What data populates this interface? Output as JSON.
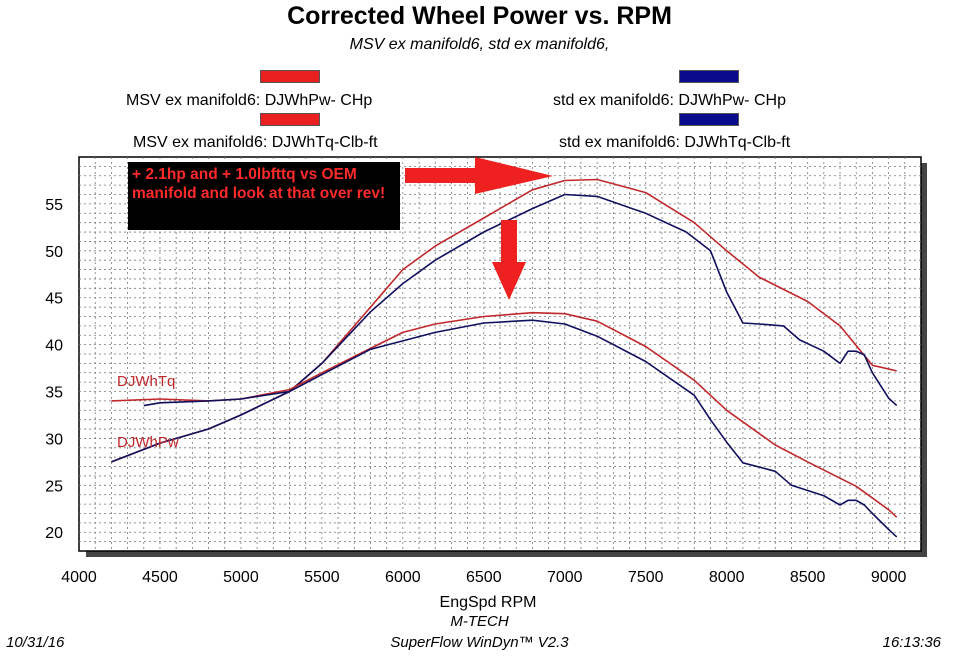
{
  "chart_data": {
    "type": "line",
    "title": "Corrected Wheel Power vs. RPM",
    "subtitle": "MSV ex manifold6, std ex manifold6,",
    "xlabel": "EngSpd  RPM",
    "ylabel": "",
    "xlim": [
      4000,
      9200
    ],
    "ylim": [
      18,
      60
    ],
    "xticks": [
      4000,
      4500,
      5000,
      5500,
      6000,
      6500,
      7000,
      7500,
      8000,
      8500,
      9000
    ],
    "yticks": [
      20,
      25,
      30,
      35,
      40,
      45,
      50,
      55
    ],
    "grid": true,
    "legend": {
      "placement": "top",
      "entries": [
        {
          "label": "MSV ex manifold6: DJWhPw- CHp",
          "color": "#e82020"
        },
        {
          "label": "std ex manifold6: DJWhPw- CHp",
          "color": "#0a0a8c"
        },
        {
          "label": "MSV ex manifold6: DJWhTq-Clb-ft",
          "color": "#e82020"
        },
        {
          "label": "std ex manifold6: DJWhTq-Clb-ft",
          "color": "#0a0a8c"
        }
      ]
    },
    "series_labels": {
      "torque": "DJWhTq",
      "power": "DJWhPw"
    },
    "series": [
      {
        "name": "MSV ex manifold6: DJWhPw- CHp",
        "color": "#c0282c",
        "x": [
          4200,
          4500,
          4800,
          5000,
          5300,
          5500,
          5800,
          6000,
          6200,
          6500,
          6800,
          7000,
          7200,
          7500,
          7800,
          8000,
          8200,
          8500,
          8700,
          8900,
          9050
        ],
        "y": [
          27.5,
          29.5,
          31,
          32.5,
          35,
          38,
          44,
          48,
          50.5,
          53.5,
          56.5,
          57.5,
          57.6,
          56.2,
          53,
          50,
          47.2,
          44.6,
          42,
          37.8,
          37.2
        ]
      },
      {
        "name": "std ex manifold6: DJWhPw- CHp",
        "color": "#10105e",
        "x": [
          4200,
          4500,
          4800,
          5000,
          5300,
          5500,
          5800,
          6000,
          6200,
          6500,
          6800,
          7000,
          7200,
          7500,
          7750,
          7900,
          8000,
          8100,
          8200,
          8350,
          8450,
          8600,
          8700,
          8750,
          8800,
          8850,
          8900,
          9000,
          9050
        ],
        "y": [
          27.5,
          29.5,
          31,
          32.5,
          35,
          38,
          43.5,
          46.5,
          49,
          52,
          54.5,
          56,
          55.8,
          54,
          52,
          50,
          45.6,
          42.3,
          42.2,
          42,
          40.5,
          39.3,
          38,
          39.3,
          39.3,
          38.9,
          37,
          34.3,
          33.5
        ]
      },
      {
        "name": "MSV ex manifold6: DJWhTq-Clb-ft",
        "color": "#c0282c",
        "x": [
          4200,
          4500,
          4800,
          5000,
          5300,
          5500,
          5800,
          6000,
          6200,
          6500,
          6800,
          7000,
          7200,
          7500,
          7800,
          8000,
          8300,
          8500,
          8800,
          9000,
          9050
        ],
        "y": [
          34,
          34.2,
          34,
          34.2,
          35.2,
          37,
          39.6,
          41.3,
          42.2,
          43,
          43.4,
          43.3,
          42.5,
          39.8,
          36.2,
          33,
          29.3,
          27.5,
          24.9,
          22.4,
          21.6
        ]
      },
      {
        "name": "std ex manifold6: DJWhTq-Clb-ft",
        "color": "#10105e",
        "x": [
          4400,
          4500,
          4800,
          5000,
          5300,
          5500,
          5800,
          6000,
          6200,
          6500,
          6800,
          7000,
          7200,
          7500,
          7800,
          7900,
          8000,
          8100,
          8300,
          8400,
          8600,
          8700,
          8750,
          8800,
          8850,
          8900,
          9000,
          9050
        ],
        "y": [
          33.5,
          33.8,
          34,
          34.2,
          35,
          36.8,
          39.5,
          40.4,
          41.3,
          42.3,
          42.6,
          42.2,
          40.9,
          38.2,
          34.6,
          32,
          29.6,
          27.4,
          26.5,
          25,
          23.9,
          22.9,
          23.4,
          23.4,
          22.9,
          22,
          20.3,
          19.5
        ]
      }
    ],
    "annotations": [
      {
        "text": "+ 2.1hp and + 1.0lbfttq vs OEM manifold and look at that over rev!",
        "box": "black",
        "text_color": "#ff2a2a"
      },
      {
        "shape": "arrow",
        "direction": "right",
        "color": "#ee2020"
      },
      {
        "shape": "arrow",
        "direction": "down",
        "color": "#ee2020"
      }
    ]
  },
  "footer": {
    "date": "10/31/16",
    "company": "M-TECH",
    "software": "SuperFlow WinDyn™ V2.3",
    "time": "16:13:36"
  }
}
